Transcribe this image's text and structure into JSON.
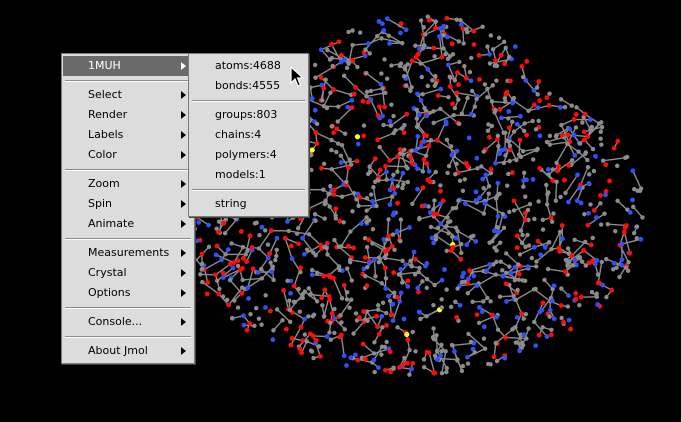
{
  "main_menu": {
    "header": "1MUH",
    "groups": [
      [
        "Select",
        "Render",
        "Labels",
        "Color"
      ],
      [
        "Zoom",
        "Spin",
        "Animate"
      ],
      [
        "Measurements",
        "Crystal",
        "Options"
      ],
      [
        "Console..."
      ],
      [
        "About Jmol"
      ]
    ]
  },
  "sub_menu": {
    "groups": [
      [
        "atoms:4688",
        "bonds:4555"
      ],
      [
        "groups:803",
        "chains:4",
        "polymers:4",
        "models:1"
      ],
      [
        "string"
      ]
    ]
  },
  "colors": {
    "background": "#000000",
    "carbon": "#8c8c8c",
    "oxygen": "#ff0d0d",
    "nitrogen": "#3050f8",
    "sulfur": "#ffff30"
  },
  "icons": {
    "cursor": "arrow-pointer-icon"
  }
}
